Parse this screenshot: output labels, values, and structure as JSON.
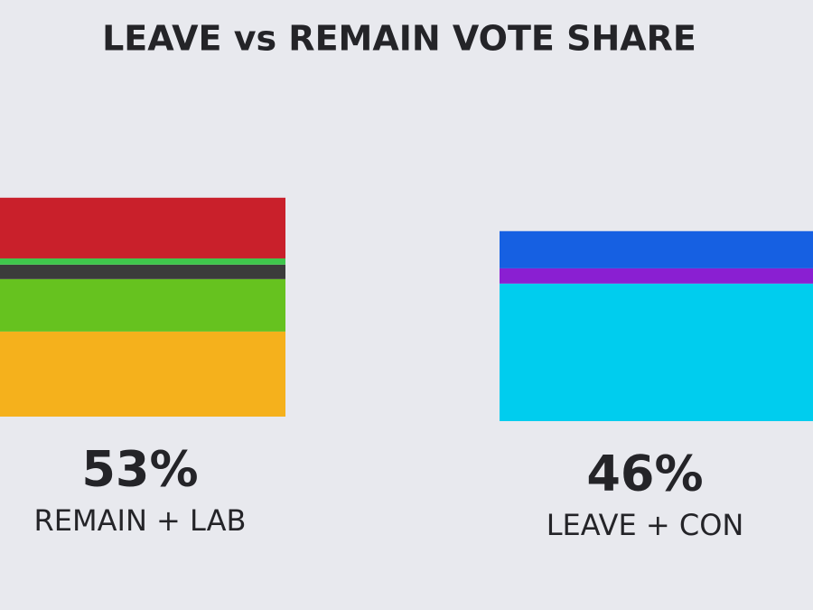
{
  "chart_data": {
    "type": "stacked_bar",
    "title": "LEAVE vs REMAIN VOTE SHARE",
    "bars": [
      {
        "label": "REMAIN + LAB",
        "total": 53,
        "total_label": "53%",
        "segments": [
          {
            "color": "#f5b11c",
            "value": 20.6
          },
          {
            "color": "#66c21f",
            "value": 12.7
          },
          {
            "color": "#3b3b3b",
            "value": 3.5
          },
          {
            "color": "#3fc64c",
            "value": 1.5
          },
          {
            "color": "#c9202b",
            "value": 14.7
          }
        ]
      },
      {
        "label": "LEAVE + CON",
        "total": 46,
        "total_label": "46%",
        "segments": [
          {
            "color": "#00cdee",
            "value": 33.3
          },
          {
            "color": "#8a1fd2",
            "value": 3.7
          },
          {
            "color": "#1660e2",
            "value": 9.0
          }
        ]
      }
    ]
  }
}
